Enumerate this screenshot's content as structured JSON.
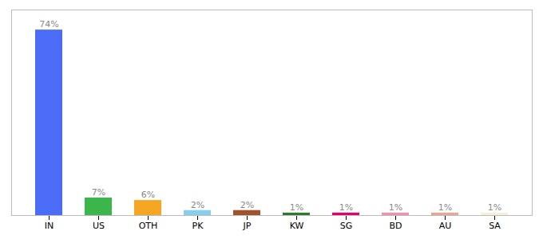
{
  "chart_data": {
    "type": "bar",
    "categories": [
      "IN",
      "US",
      "OTH",
      "PK",
      "JP",
      "KW",
      "SG",
      "BD",
      "AU",
      "SA"
    ],
    "values": [
      74,
      7,
      6,
      2,
      2,
      1,
      1,
      1,
      1,
      1
    ],
    "value_labels": [
      "74%",
      "7%",
      "6%",
      "2%",
      "2%",
      "1%",
      "1%",
      "1%",
      "1%",
      "1%"
    ],
    "colors": [
      "#4A6CF7",
      "#3CB54A",
      "#F5A623",
      "#87CEEB",
      "#A0522D",
      "#2D7A2D",
      "#E8006A",
      "#F48FB1",
      "#E8A898",
      "#F5F0DC"
    ],
    "ylim": [
      0,
      82
    ],
    "data_labels": true,
    "tick_labels": "x",
    "grid": false
  }
}
